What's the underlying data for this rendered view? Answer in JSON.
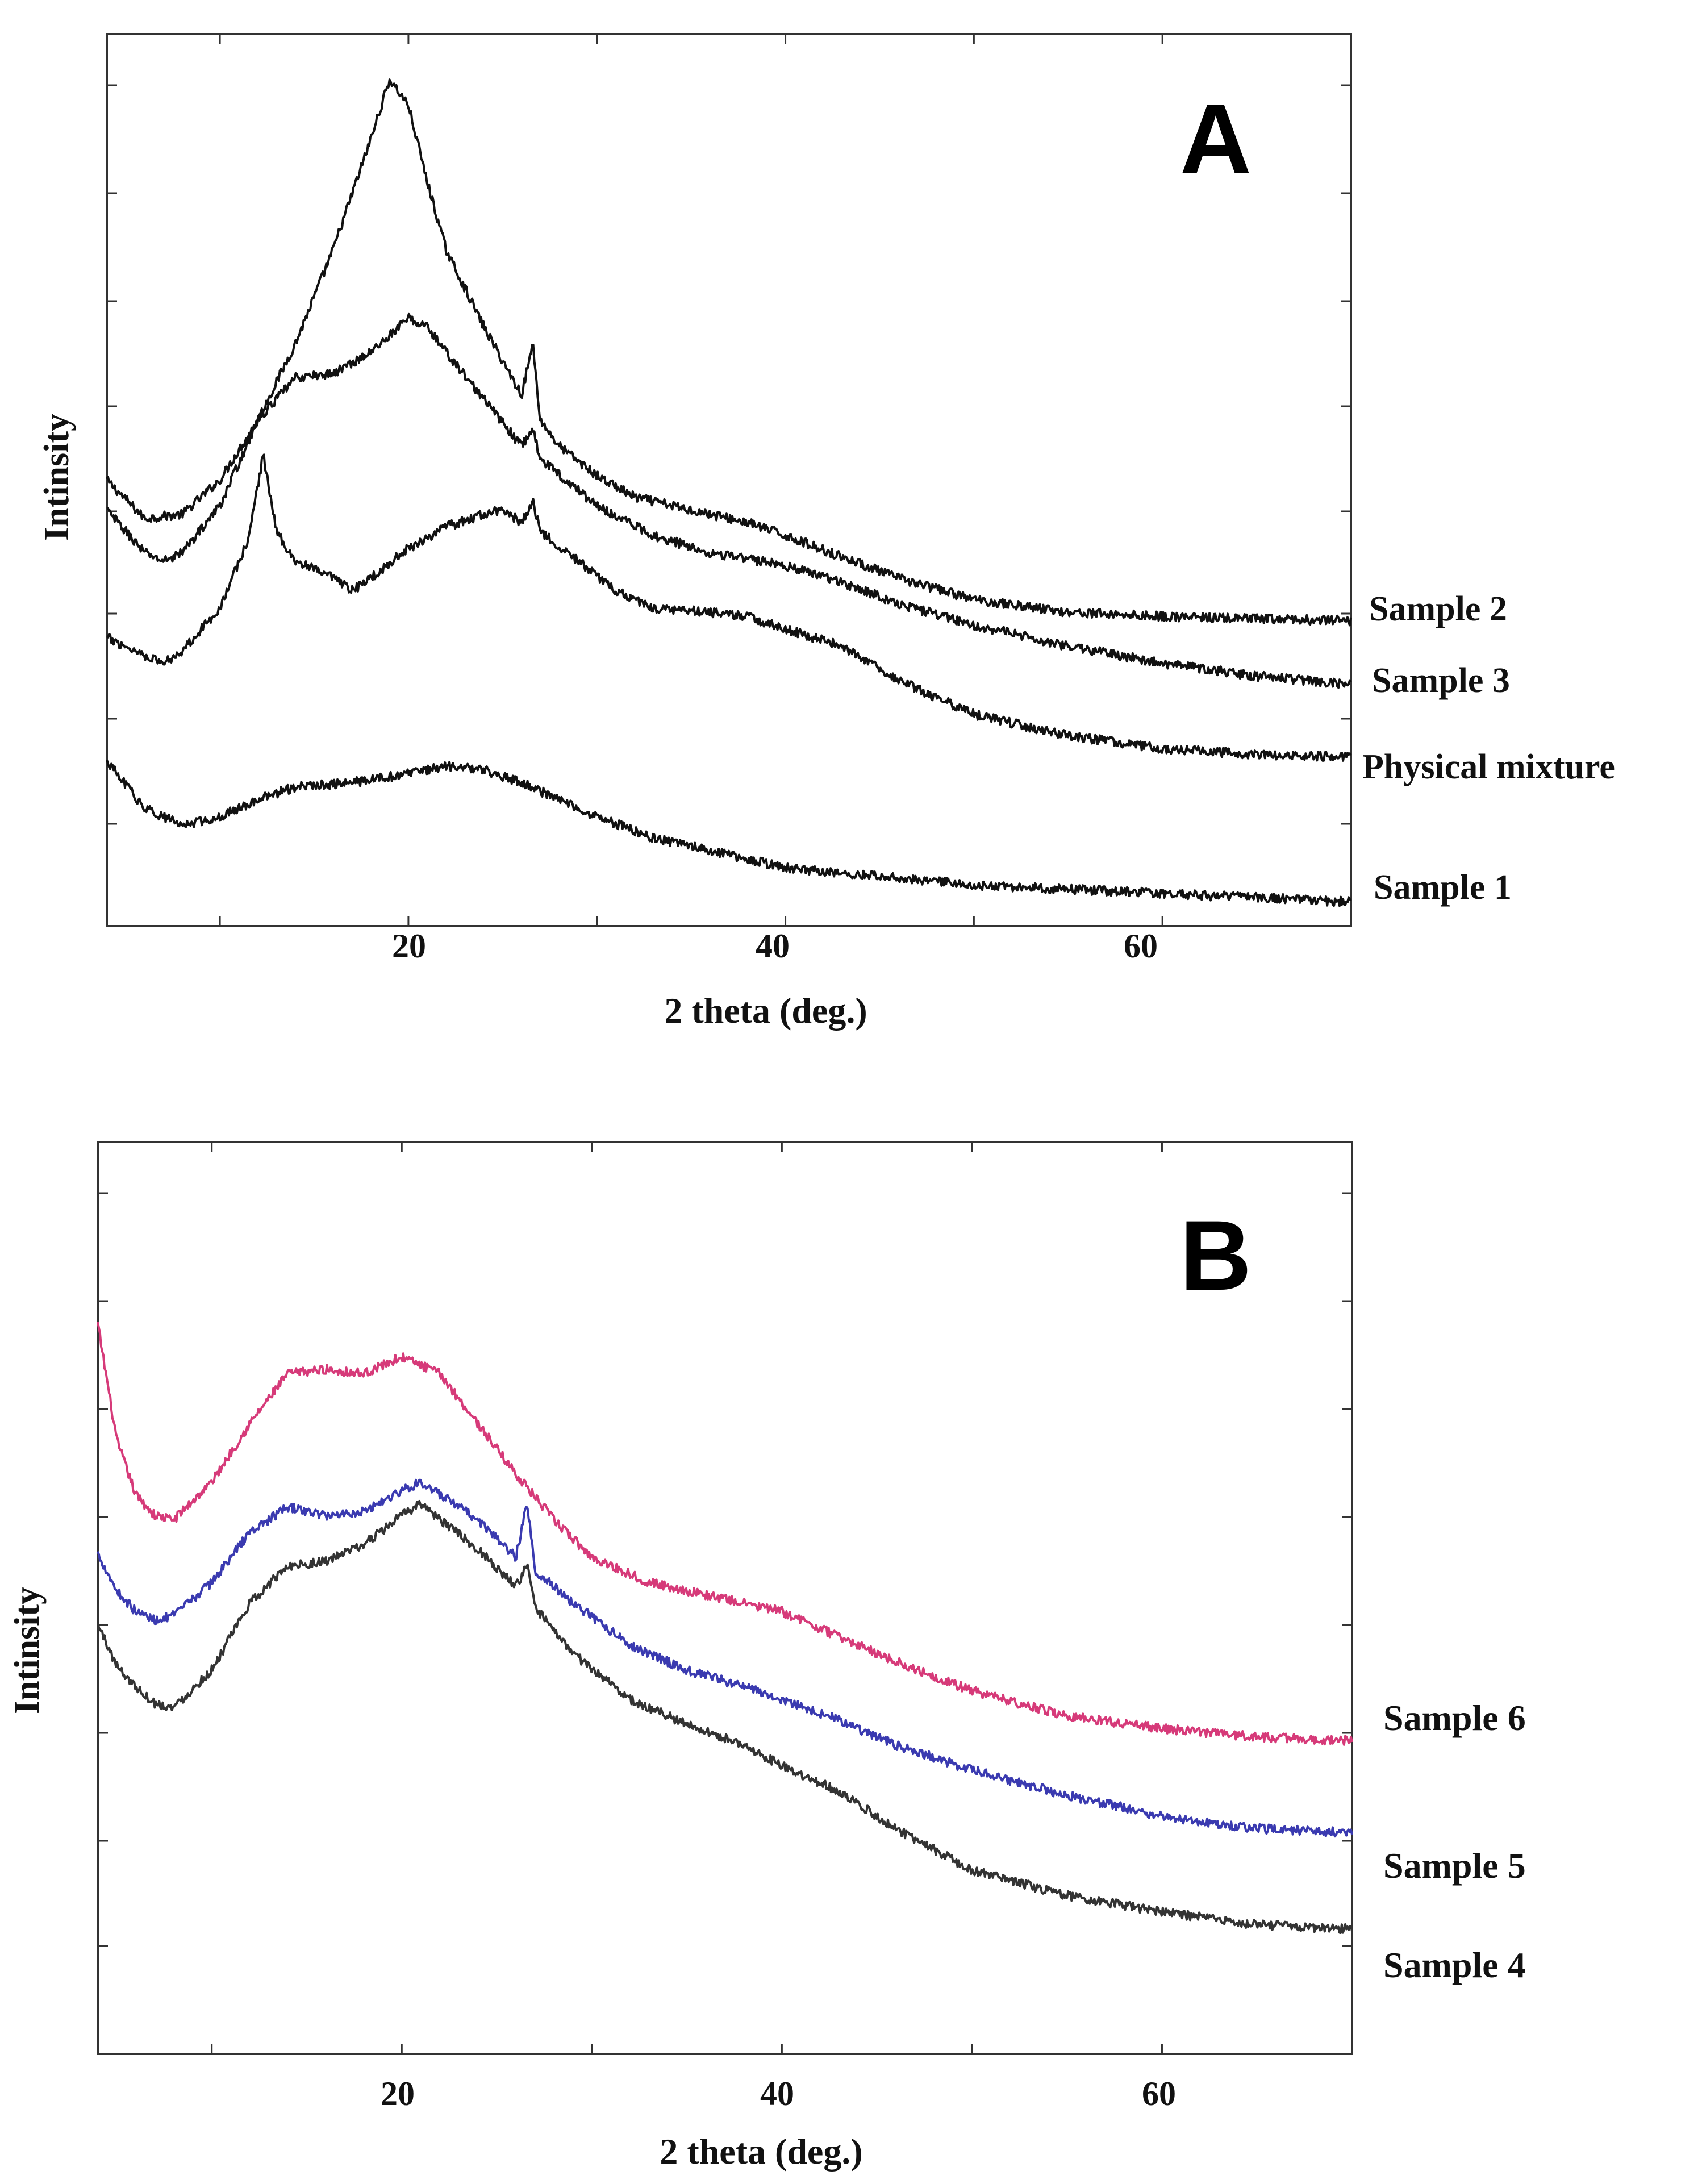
{
  "colors": {
    "black": "#111111",
    "pink": "#d63a79",
    "blue": "#3a3ab0",
    "gray": "#333333"
  },
  "chart_data": [
    {
      "panel": "A",
      "type": "line",
      "title": "",
      "xlabel": "2 theta (deg.)",
      "ylabel": "Intinsity",
      "xlim": [
        4,
        70
      ],
      "ylim": [
        0,
        10
      ],
      "xticks": [
        20,
        40,
        60
      ],
      "series": [
        {
          "name": "Sample 2",
          "color": "#111111",
          "points": [
            [
              4,
              4.9
            ],
            [
              6,
              4.45
            ],
            [
              8,
              4.5
            ],
            [
              10,
              4.9
            ],
            [
              12,
              5.6
            ],
            [
              14,
              6.5
            ],
            [
              16,
              7.6
            ],
            [
              18,
              8.9
            ],
            [
              19,
              9.6
            ],
            [
              20,
              9.3
            ],
            [
              21,
              8.4
            ],
            [
              22,
              7.6
            ],
            [
              24,
              6.7
            ],
            [
              26,
              5.9
            ],
            [
              26.6,
              6.5
            ],
            [
              27,
              5.6
            ],
            [
              28,
              5.3
            ],
            [
              30,
              4.95
            ],
            [
              32,
              4.7
            ],
            [
              35,
              4.55
            ],
            [
              38,
              4.4
            ],
            [
              40,
              4.25
            ],
            [
              43,
              4.0
            ],
            [
              46,
              3.75
            ],
            [
              50,
              3.5
            ],
            [
              55,
              3.35
            ],
            [
              60,
              3.3
            ],
            [
              65,
              3.27
            ],
            [
              70,
              3.25
            ]
          ]
        },
        {
          "name": "Sample 3",
          "color": "#111111",
          "points": [
            [
              4,
              4.55
            ],
            [
              6,
              4.05
            ],
            [
              7,
              3.95
            ],
            [
              8,
              4.05
            ],
            [
              10,
              4.6
            ],
            [
              12,
              5.6
            ],
            [
              14,
              6.1
            ],
            [
              16,
              6.15
            ],
            [
              18,
              6.4
            ],
            [
              20,
              6.8
            ],
            [
              21,
              6.7
            ],
            [
              22,
              6.4
            ],
            [
              24,
              5.85
            ],
            [
              26,
              5.3
            ],
            [
              26.6,
              5.5
            ],
            [
              27,
              5.15
            ],
            [
              30,
              4.6
            ],
            [
              33,
              4.25
            ],
            [
              36,
              4.05
            ],
            [
              40,
              3.9
            ],
            [
              43,
              3.7
            ],
            [
              46,
              3.45
            ],
            [
              50,
              3.2
            ],
            [
              55,
              2.95
            ],
            [
              60,
              2.75
            ],
            [
              65,
              2.6
            ],
            [
              70,
              2.5
            ]
          ]
        },
        {
          "name": "Physical mixture",
          "color": "#111111",
          "points": [
            [
              4,
              3.05
            ],
            [
              6,
              2.85
            ],
            [
              7,
              2.75
            ],
            [
              8,
              2.9
            ],
            [
              10,
              3.4
            ],
            [
              11.5,
              4.2
            ],
            [
              12.3,
              5.2
            ],
            [
              13,
              4.3
            ],
            [
              14,
              3.95
            ],
            [
              15,
              3.85
            ],
            [
              16,
              3.75
            ],
            [
              17,
              3.6
            ],
            [
              18,
              3.75
            ],
            [
              20,
              4.1
            ],
            [
              22,
              4.35
            ],
            [
              24,
              4.5
            ],
            [
              25,
              4.55
            ],
            [
              26,
              4.4
            ],
            [
              26.6,
              4.65
            ],
            [
              27,
              4.3
            ],
            [
              29,
              3.95
            ],
            [
              31,
              3.6
            ],
            [
              33,
              3.4
            ],
            [
              36,
              3.35
            ],
            [
              38,
              3.3
            ],
            [
              40,
              3.15
            ],
            [
              43,
              2.95
            ],
            [
              46,
              2.55
            ],
            [
              50,
              2.15
            ],
            [
              55,
              1.9
            ],
            [
              60,
              1.75
            ],
            [
              65,
              1.68
            ],
            [
              70,
              1.65
            ]
          ]
        },
        {
          "name": "Sample 1",
          "color": "#111111",
          "points": [
            [
              4,
              1.6
            ],
            [
              6,
              1.05
            ],
            [
              8,
              0.85
            ],
            [
              10,
              0.95
            ],
            [
              12,
              1.15
            ],
            [
              14,
              1.3
            ],
            [
              17,
              1.35
            ],
            [
              20,
              1.45
            ],
            [
              22,
              1.55
            ],
            [
              24,
              1.5
            ],
            [
              26,
              1.35
            ],
            [
              28,
              1.15
            ],
            [
              30,
              0.95
            ],
            [
              33,
              0.7
            ],
            [
              37,
              0.5
            ],
            [
              40,
              0.35
            ],
            [
              45,
              0.25
            ],
            [
              50,
              0.15
            ],
            [
              55,
              0.1
            ],
            [
              60,
              0.05
            ],
            [
              65,
              0.0
            ],
            [
              70,
              -0.05
            ]
          ]
        }
      ]
    },
    {
      "panel": "B",
      "type": "line",
      "title": "",
      "xlabel": "2 theta (deg.)",
      "ylabel": "Intinsity",
      "xlim": [
        4,
        70
      ],
      "ylim": [
        0,
        10
      ],
      "xticks": [
        20,
        40,
        60
      ],
      "series": [
        {
          "name": "Sample 6",
          "color": "#d63a79",
          "points": [
            [
              4,
              8.1
            ],
            [
              5,
              6.7
            ],
            [
              6,
              6.05
            ],
            [
              7,
              5.8
            ],
            [
              8,
              5.75
            ],
            [
              10,
              6.2
            ],
            [
              12,
              6.9
            ],
            [
              14,
              7.5
            ],
            [
              16,
              7.55
            ],
            [
              18,
              7.5
            ],
            [
              20,
              7.7
            ],
            [
              22,
              7.5
            ],
            [
              24,
              6.9
            ],
            [
              26,
              6.3
            ],
            [
              28,
              5.75
            ],
            [
              30,
              5.3
            ],
            [
              33,
              5.0
            ],
            [
              36,
              4.85
            ],
            [
              40,
              4.65
            ],
            [
              43,
              4.35
            ],
            [
              46,
              4.05
            ],
            [
              50,
              3.7
            ],
            [
              55,
              3.4
            ],
            [
              60,
              3.25
            ],
            [
              65,
              3.15
            ],
            [
              70,
              3.1
            ]
          ]
        },
        {
          "name": "Sample 5",
          "color": "#3a3ab0",
          "points": [
            [
              4,
              5.35
            ],
            [
              5,
              4.9
            ],
            [
              6,
              4.65
            ],
            [
              7,
              4.55
            ],
            [
              8,
              4.6
            ],
            [
              10,
              5.0
            ],
            [
              12,
              5.6
            ],
            [
              14,
              5.9
            ],
            [
              16,
              5.8
            ],
            [
              18,
              5.85
            ],
            [
              20,
              6.1
            ],
            [
              21,
              6.2
            ],
            [
              22,
              6.05
            ],
            [
              24,
              5.75
            ],
            [
              26,
              5.3
            ],
            [
              26.6,
              5.95
            ],
            [
              27,
              5.15
            ],
            [
              29,
              4.75
            ],
            [
              32,
              4.25
            ],
            [
              35,
              3.95
            ],
            [
              38,
              3.75
            ],
            [
              40,
              3.6
            ],
            [
              43,
              3.35
            ],
            [
              46,
              3.05
            ],
            [
              50,
              2.75
            ],
            [
              55,
              2.45
            ],
            [
              60,
              2.2
            ],
            [
              65,
              2.05
            ],
            [
              70,
              2.0
            ]
          ]
        },
        {
          "name": "Sample 4",
          "color": "#333333",
          "points": [
            [
              4,
              4.5
            ],
            [
              5,
              4.0
            ],
            [
              6,
              3.75
            ],
            [
              7,
              3.55
            ],
            [
              8,
              3.5
            ],
            [
              10,
              3.95
            ],
            [
              12,
              4.75
            ],
            [
              14,
              5.2
            ],
            [
              16,
              5.25
            ],
            [
              18,
              5.45
            ],
            [
              20,
              5.8
            ],
            [
              21,
              5.95
            ],
            [
              22,
              5.75
            ],
            [
              24,
              5.4
            ],
            [
              26,
              4.95
            ],
            [
              26.6,
              5.2
            ],
            [
              27,
              4.7
            ],
            [
              29,
              4.15
            ],
            [
              32,
              3.6
            ],
            [
              35,
              3.3
            ],
            [
              38,
              3.05
            ],
            [
              40,
              2.8
            ],
            [
              43,
              2.5
            ],
            [
              46,
              2.05
            ],
            [
              50,
              1.55
            ],
            [
              55,
              1.25
            ],
            [
              60,
              1.05
            ],
            [
              65,
              0.9
            ],
            [
              70,
              0.85
            ]
          ]
        }
      ]
    }
  ]
}
